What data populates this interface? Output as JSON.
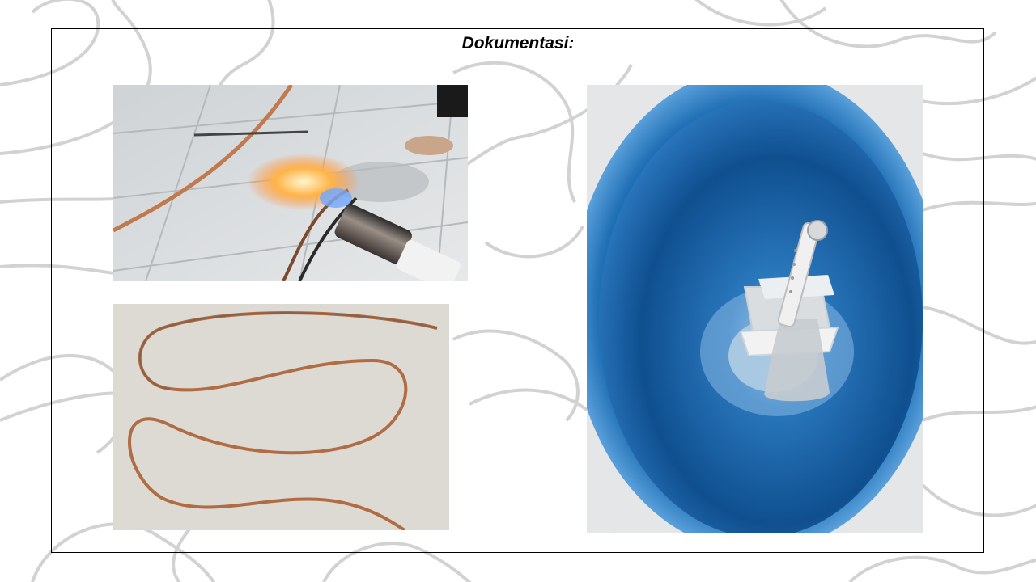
{
  "slide": {
    "title": "Dokumentasi:"
  },
  "photos": [
    {
      "name": "photo-copper-tube-heating",
      "icon": "torch-flame-photo"
    },
    {
      "name": "photo-copper-wire-coil",
      "icon": "copper-wire-photo"
    },
    {
      "name": "photo-blue-barrel-interior",
      "icon": "blue-barrel-photo"
    }
  ],
  "colors": {
    "background": "#ffffff",
    "pattern_stroke": "#cfcfcf",
    "frame_border": "#000000",
    "barrel_blue": "#1f6fb4",
    "copper": "#c07a4e"
  }
}
